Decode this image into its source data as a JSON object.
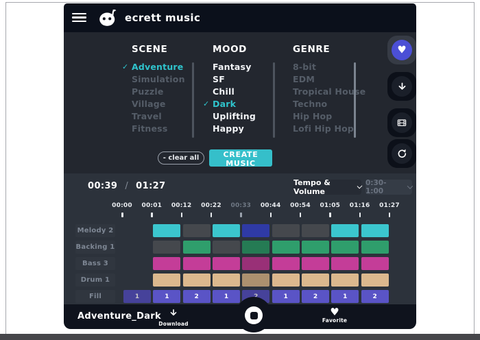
{
  "header": {
    "title": "ecrett music"
  },
  "colors": {
    "accent_teal": "#35bfca",
    "selected_teal": "#2fc3cc",
    "favorite_purple": "#4b4fd6"
  },
  "selection": {
    "columns": [
      {
        "header": "SCENE",
        "items": [
          {
            "label": "Adventure",
            "state": "selected",
            "checked": true
          },
          {
            "label": "Simulation",
            "state": "disabled"
          },
          {
            "label": "Puzzle",
            "state": "disabled"
          },
          {
            "label": "Village",
            "state": "disabled"
          },
          {
            "label": "Travel",
            "state": "disabled"
          },
          {
            "label": "Fitness",
            "state": "disabled"
          }
        ]
      },
      {
        "header": "MOOD",
        "items": [
          {
            "label": "Fantasy",
            "state": "normal"
          },
          {
            "label": "SF",
            "state": "normal"
          },
          {
            "label": "Chill",
            "state": "normal"
          },
          {
            "label": "Dark",
            "state": "selected",
            "checked": true
          },
          {
            "label": "Uplifting",
            "state": "normal"
          },
          {
            "label": "Happy",
            "state": "normal"
          }
        ]
      },
      {
        "header": "GENRE",
        "items": [
          {
            "label": "8-bit",
            "state": "disabled"
          },
          {
            "label": "EDM",
            "state": "disabled"
          },
          {
            "label": "Tropical House",
            "state": "disabled"
          },
          {
            "label": "Techno",
            "state": "disabled"
          },
          {
            "label": "Hip Hop",
            "state": "disabled"
          },
          {
            "label": "Lofi Hip Hop",
            "state": "disabled"
          }
        ]
      }
    ],
    "clear_all_label": "- clear all",
    "create_button_label": "CREATE MUSIC"
  },
  "side_buttons": [
    {
      "name": "favorite",
      "icon": "heart",
      "accent": "#4b4fd6",
      "active": true
    },
    {
      "name": "download",
      "icon": "arrow-down"
    },
    {
      "name": "video-preview",
      "icon": "film"
    },
    {
      "name": "regenerate",
      "icon": "refresh"
    }
  ],
  "player": {
    "current_time": "00:39",
    "time_separator": "/",
    "total_time": "01:27",
    "view_dropdown": {
      "value": "Tempo & Volume"
    },
    "range_dropdown": {
      "value": "0:30-1:00",
      "disabled": true
    },
    "ruler": {
      "ticks": [
        "00:00",
        "00:01",
        "00:12",
        "00:22",
        "00:33",
        "00:44",
        "00:54",
        "01:05",
        "01:16",
        "01:27"
      ],
      "dimmed_index": 4
    },
    "palette": {
      "teal": "#3bc6ce",
      "rest": "#45484d",
      "indigo": "#3c4bd4",
      "green": "#2f9e6c",
      "magenta": "#c43d98",
      "tan": "#dcb88e",
      "purple": "#5a54c6"
    },
    "tracks": [
      {
        "label": "Melody 2",
        "start_col": 1,
        "blocks": [
          {
            "color": "teal"
          },
          {
            "color": "rest"
          },
          {
            "color": "teal"
          },
          {
            "color": "indigo",
            "dim": true
          },
          {
            "color": "rest"
          },
          {
            "color": "rest"
          },
          {
            "color": "teal"
          },
          {
            "color": "teal"
          }
        ]
      },
      {
        "label": "Backing 1",
        "start_col": 1,
        "blocks": [
          {
            "color": "rest"
          },
          {
            "color": "green"
          },
          {
            "color": "rest"
          },
          {
            "color": "green",
            "dim": true
          },
          {
            "color": "green"
          },
          {
            "color": "green"
          },
          {
            "color": "green"
          },
          {
            "color": "green"
          }
        ]
      },
      {
        "label": "Bass 3",
        "start_col": 1,
        "blocks": [
          {
            "color": "magenta"
          },
          {
            "color": "magenta"
          },
          {
            "color": "magenta"
          },
          {
            "color": "magenta",
            "dim": true
          },
          {
            "color": "magenta"
          },
          {
            "color": "magenta"
          },
          {
            "color": "magenta"
          },
          {
            "color": "magenta"
          }
        ]
      },
      {
        "label": "Drum 1",
        "start_col": 1,
        "blocks": [
          {
            "color": "tan"
          },
          {
            "color": "tan"
          },
          {
            "color": "tan"
          },
          {
            "color": "tan",
            "dim": true
          },
          {
            "color": "tan"
          },
          {
            "color": "tan"
          },
          {
            "color": "tan"
          },
          {
            "color": "tan"
          }
        ]
      },
      {
        "label": "Fill",
        "start_col": 0,
        "blocks": [
          {
            "color": "purple",
            "text": "1",
            "dim": true
          },
          {
            "color": "purple",
            "text": "1"
          },
          {
            "color": "purple",
            "text": "2"
          },
          {
            "color": "purple",
            "text": "1"
          },
          {
            "color": "purple",
            "text": "2",
            "dim": true
          },
          {
            "color": "purple",
            "text": "1"
          },
          {
            "color": "purple",
            "text": "2"
          },
          {
            "color": "purple",
            "text": "1"
          },
          {
            "color": "purple",
            "text": "2"
          }
        ]
      }
    ]
  },
  "bottom_bar": {
    "track_name": "Adventure_Dark",
    "download_label": "Download",
    "favorite_label": "Favorite"
  }
}
